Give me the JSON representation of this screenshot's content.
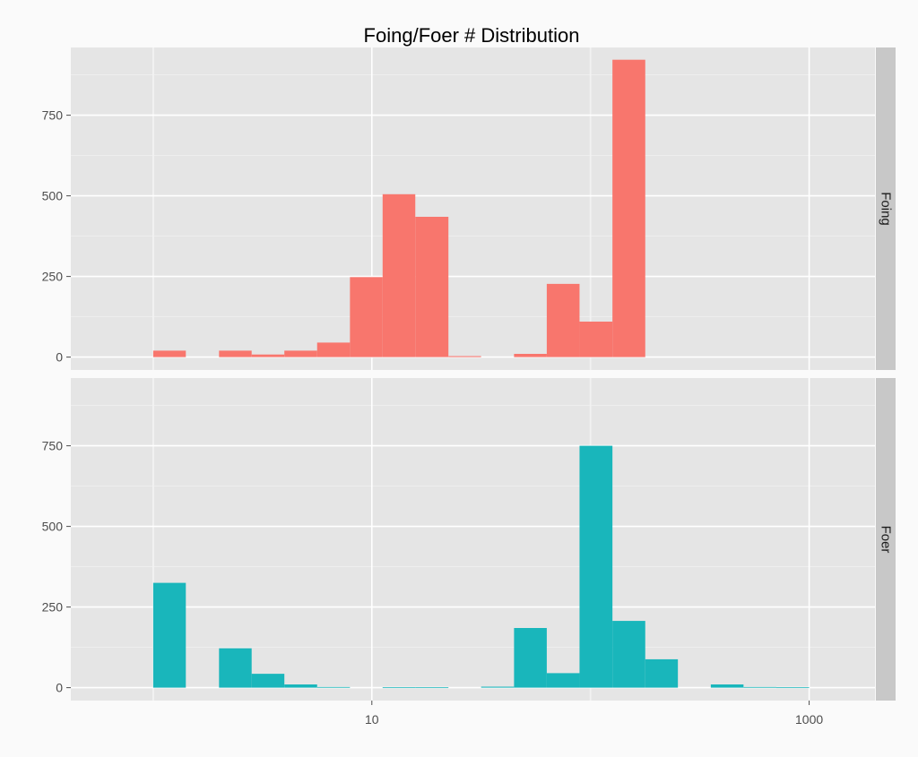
{
  "chart_data": {
    "type": "bar",
    "title": "Foing/Foer # Distribution",
    "xlabel": "",
    "ylabel": "",
    "x_scale": "log10",
    "x_tick_labels": [
      "10",
      "1000"
    ],
    "x_tick_values": [
      10,
      1000
    ],
    "xlim": [
      0.42,
      2000
    ],
    "y_tick_labels": [
      "0",
      "250",
      "500",
      "750"
    ],
    "y_tick_values": [
      0,
      250,
      500,
      750
    ],
    "ylim": [
      -40,
      960
    ],
    "grid": true,
    "legend": "none",
    "bin_edges": [
      1.0,
      1.41,
      2.0,
      2.82,
      3.98,
      5.62,
      7.94,
      11.2,
      15.8,
      22.4,
      31.6,
      44.7,
      63.1,
      89.1,
      126,
      178,
      251,
      355,
      501,
      708,
      1000
    ],
    "facets": [
      {
        "name": "Foing",
        "color": "#F8766D",
        "counts": [
          20,
          0,
          20,
          8,
          20,
          45,
          248,
          505,
          435,
          3,
          0,
          10,
          227,
          110,
          922,
          0,
          0,
          0,
          0,
          0
        ]
      },
      {
        "name": "Foer",
        "color": "#19B6BB",
        "counts": [
          325,
          0,
          122,
          43,
          10,
          2,
          0,
          1,
          1,
          0,
          3,
          185,
          45,
          750,
          207,
          88,
          0,
          10,
          2,
          1
        ]
      }
    ]
  }
}
